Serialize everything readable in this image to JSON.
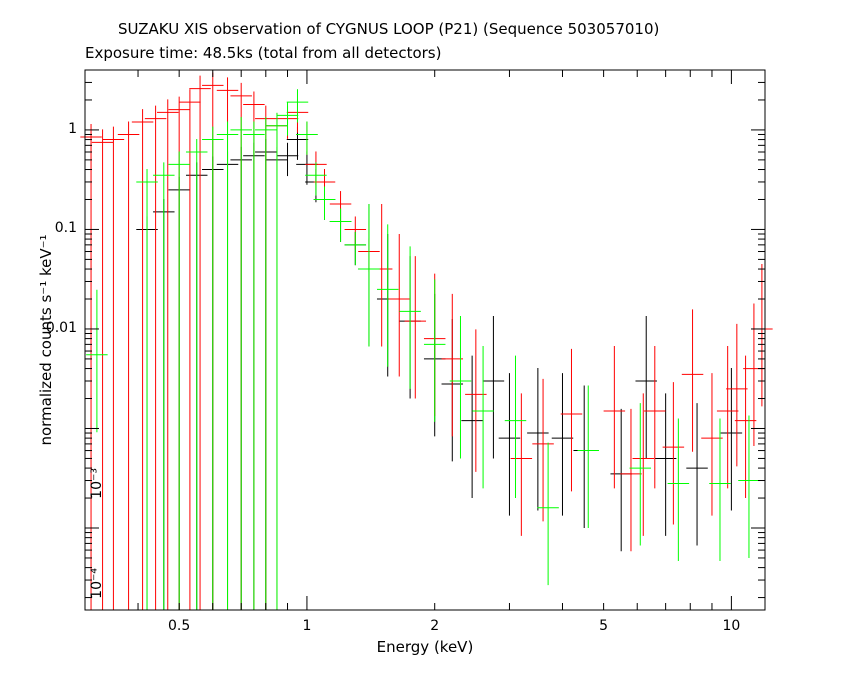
{
  "chart_data": {
    "type": "scatter",
    "title": "SUZAKU XIS observation of CYGNUS LOOP (P21) (Sequence 503057010)",
    "subtitle": "Exposure time: 48.5ks (total from all detectors)",
    "xlabel": "Energy (keV)",
    "ylabel": "normalized counts s⁻¹ keV⁻¹",
    "x_scale": "log",
    "y_scale": "log",
    "xlim": [
      0.3,
      12.0
    ],
    "ylim": [
      1.5e-05,
      4.0
    ],
    "x_tick_labels": [
      "0.5",
      "1",
      "2",
      "5",
      "10"
    ],
    "x_tick_values": [
      0.5,
      1,
      2,
      5,
      10
    ],
    "y_tick_labels": [
      "1",
      "0.1",
      "0.01",
      "10⁻³",
      "10⁻⁴"
    ],
    "y_tick_values": [
      1,
      0.1,
      0.01,
      0.001,
      0.0001
    ],
    "series": [
      {
        "color": "#000000",
        "points": [
          {
            "x": 0.42,
            "y": 0.1
          },
          {
            "x": 0.46,
            "y": 0.15
          },
          {
            "x": 0.5,
            "y": 0.25
          },
          {
            "x": 0.55,
            "y": 0.35
          },
          {
            "x": 0.6,
            "y": 0.4
          },
          {
            "x": 0.65,
            "y": 0.45
          },
          {
            "x": 0.7,
            "y": 0.5
          },
          {
            "x": 0.75,
            "y": 0.55
          },
          {
            "x": 0.8,
            "y": 0.6
          },
          {
            "x": 0.85,
            "y": 0.5
          },
          {
            "x": 0.9,
            "y": 0.55
          },
          {
            "x": 0.95,
            "y": 0.8
          },
          {
            "x": 1.0,
            "y": 0.45
          },
          {
            "x": 1.05,
            "y": 0.3
          },
          {
            "x": 1.1,
            "y": 0.2
          },
          {
            "x": 1.2,
            "y": 0.12
          },
          {
            "x": 1.3,
            "y": 0.07
          },
          {
            "x": 1.4,
            "y": 0.04
          },
          {
            "x": 1.55,
            "y": 0.02
          },
          {
            "x": 1.75,
            "y": 0.012
          },
          {
            "x": 2.0,
            "y": 0.005
          },
          {
            "x": 2.2,
            "y": 0.0028
          },
          {
            "x": 2.45,
            "y": 0.0012
          },
          {
            "x": 2.75,
            "y": 0.003
          },
          {
            "x": 3.0,
            "y": 0.0008
          },
          {
            "x": 3.5,
            "y": 0.0009
          },
          {
            "x": 4.0,
            "y": 0.0008
          },
          {
            "x": 4.5,
            "y": 0.0006
          },
          {
            "x": 5.5,
            "y": 0.00035
          },
          {
            "x": 6.3,
            "y": 0.003
          },
          {
            "x": 7.0,
            "y": 0.0005
          },
          {
            "x": 8.3,
            "y": 0.0004
          },
          {
            "x": 10.0,
            "y": 0.0009
          }
        ]
      },
      {
        "color": "#ff0000",
        "points": [
          {
            "x": 0.31,
            "y": 0.85
          },
          {
            "x": 0.33,
            "y": 0.75
          },
          {
            "x": 0.35,
            "y": 0.8
          },
          {
            "x": 0.38,
            "y": 0.9
          },
          {
            "x": 0.41,
            "y": 1.2
          },
          {
            "x": 0.44,
            "y": 1.3
          },
          {
            "x": 0.47,
            "y": 1.5
          },
          {
            "x": 0.5,
            "y": 1.6
          },
          {
            "x": 0.53,
            "y": 1.9
          },
          {
            "x": 0.56,
            "y": 2.6
          },
          {
            "x": 0.6,
            "y": 2.8
          },
          {
            "x": 0.65,
            "y": 2.5
          },
          {
            "x": 0.7,
            "y": 2.2
          },
          {
            "x": 0.75,
            "y": 1.8
          },
          {
            "x": 0.8,
            "y": 1.3
          },
          {
            "x": 0.85,
            "y": 1.1
          },
          {
            "x": 0.9,
            "y": 1.3
          },
          {
            "x": 0.95,
            "y": 1.5
          },
          {
            "x": 1.0,
            "y": 0.9
          },
          {
            "x": 1.05,
            "y": 0.45
          },
          {
            "x": 1.1,
            "y": 0.3
          },
          {
            "x": 1.2,
            "y": 0.18
          },
          {
            "x": 1.3,
            "y": 0.1
          },
          {
            "x": 1.4,
            "y": 0.06
          },
          {
            "x": 1.5,
            "y": 0.04
          },
          {
            "x": 1.65,
            "y": 0.02
          },
          {
            "x": 1.8,
            "y": 0.012
          },
          {
            "x": 2.0,
            "y": 0.008
          },
          {
            "x": 2.2,
            "y": 0.005
          },
          {
            "x": 2.5,
            "y": 0.0022
          },
          {
            "x": 3.2,
            "y": 0.0005
          },
          {
            "x": 3.6,
            "y": 0.0007
          },
          {
            "x": 4.2,
            "y": 0.0014
          },
          {
            "x": 5.3,
            "y": 0.0015
          },
          {
            "x": 5.8,
            "y": 0.00035
          },
          {
            "x": 6.2,
            "y": 0.0005
          },
          {
            "x": 6.6,
            "y": 0.0015
          },
          {
            "x": 7.3,
            "y": 0.00065
          },
          {
            "x": 8.1,
            "y": 0.0035
          },
          {
            "x": 9.0,
            "y": 0.0008
          },
          {
            "x": 9.8,
            "y": 0.0015
          },
          {
            "x": 10.3,
            "y": 0.0025
          },
          {
            "x": 10.8,
            "y": 0.0012
          },
          {
            "x": 11.3,
            "y": 0.004
          },
          {
            "x": 11.8,
            "y": 0.01
          }
        ]
      },
      {
        "color": "#00ff00",
        "points": [
          {
            "x": 0.32,
            "y": 0.0055
          },
          {
            "x": 0.42,
            "y": 0.3
          },
          {
            "x": 0.46,
            "y": 0.35
          },
          {
            "x": 0.5,
            "y": 0.45
          },
          {
            "x": 0.55,
            "y": 0.6
          },
          {
            "x": 0.6,
            "y": 0.8
          },
          {
            "x": 0.65,
            "y": 0.9
          },
          {
            "x": 0.7,
            "y": 1.0
          },
          {
            "x": 0.75,
            "y": 0.9
          },
          {
            "x": 0.8,
            "y": 1.0
          },
          {
            "x": 0.85,
            "y": 1.1
          },
          {
            "x": 0.9,
            "y": 1.4
          },
          {
            "x": 0.95,
            "y": 1.9
          },
          {
            "x": 1.0,
            "y": 0.9
          },
          {
            "x": 1.05,
            "y": 0.35
          },
          {
            "x": 1.1,
            "y": 0.2
          },
          {
            "x": 1.2,
            "y": 0.12
          },
          {
            "x": 1.3,
            "y": 0.07
          },
          {
            "x": 1.4,
            "y": 0.04
          },
          {
            "x": 1.55,
            "y": 0.025
          },
          {
            "x": 1.75,
            "y": 0.015
          },
          {
            "x": 2.0,
            "y": 0.007
          },
          {
            "x": 2.3,
            "y": 0.003
          },
          {
            "x": 2.6,
            "y": 0.0015
          },
          {
            "x": 3.1,
            "y": 0.0012
          },
          {
            "x": 3.7,
            "y": 0.00016
          },
          {
            "x": 4.6,
            "y": 0.0006
          },
          {
            "x": 6.1,
            "y": 0.0004
          },
          {
            "x": 7.5,
            "y": 0.00028
          },
          {
            "x": 9.4,
            "y": 0.00028
          },
          {
            "x": 11.0,
            "y": 0.0003
          }
        ]
      }
    ]
  }
}
